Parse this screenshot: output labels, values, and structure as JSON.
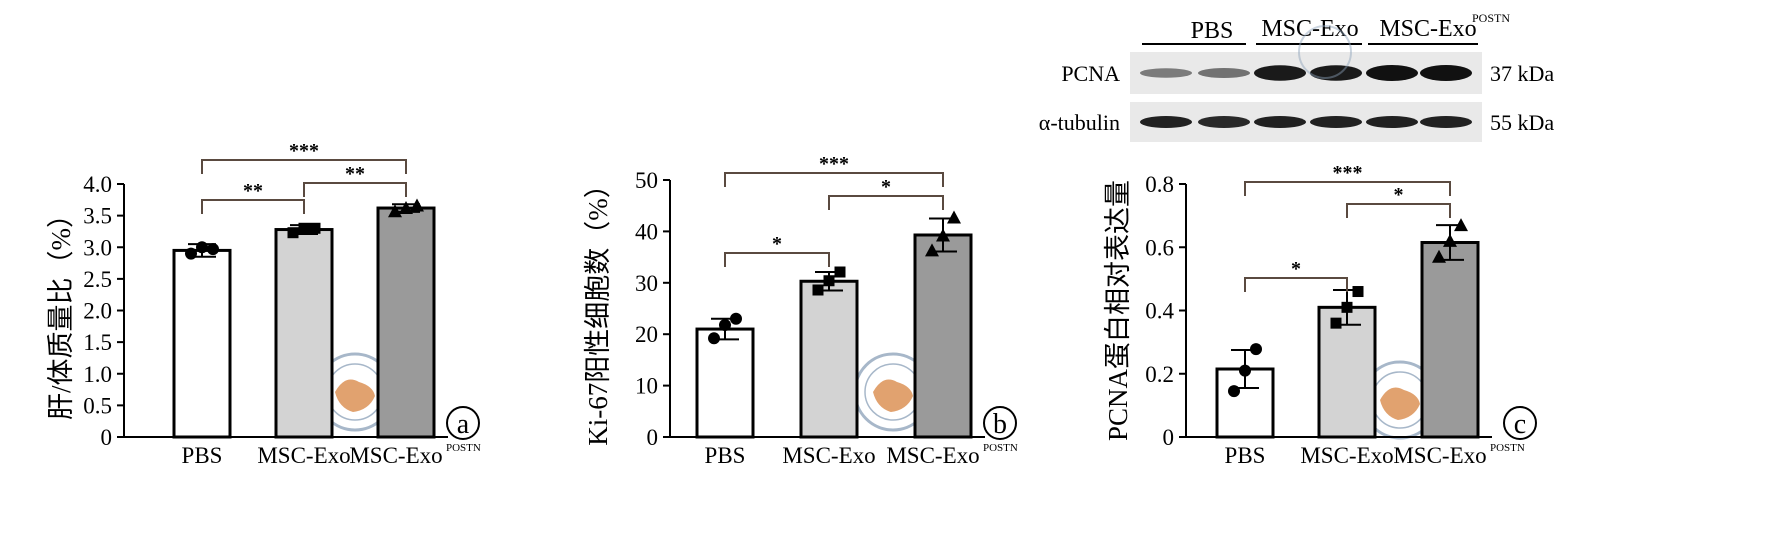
{
  "colors": {
    "pbs": "#ffffff",
    "msc_exo": "#d3d3d3",
    "msc_exo_postn": "#9a9a9a",
    "axis": "#000000",
    "bracket": "#5a4a40",
    "blot_bg": "#e9e9e9",
    "band": "#111111"
  },
  "western_blot": {
    "groups": [
      {
        "label": "PBS",
        "sup": ""
      },
      {
        "label": "MSC-Exo",
        "sup": ""
      },
      {
        "label": "MSC-Exo",
        "sup": "POSTN"
      }
    ],
    "rows": [
      {
        "protein": "PCNA",
        "size": "37 kDa",
        "intensity": [
          0.35,
          0.4,
          0.95,
          0.95,
          1.0,
          1.0
        ]
      },
      {
        "protein": "α-tubulin",
        "size": "55 kDa",
        "intensity": [
          0.9,
          0.85,
          0.9,
          0.9,
          0.9,
          0.9
        ]
      }
    ]
  },
  "chart_data": [
    {
      "type": "bar",
      "panel": "a",
      "categories": [
        {
          "label": "PBS",
          "sup": ""
        },
        {
          "label": "MSC-Exo",
          "sup": ""
        },
        {
          "label": "MSC-Exo",
          "sup": "POSTN"
        }
      ],
      "values": [
        2.95,
        3.28,
        3.62
      ],
      "errors": [
        0.1,
        0.07,
        0.06
      ],
      "points": [
        [
          2.9,
          3.0,
          2.97
        ],
        [
          3.23,
          3.3,
          3.3
        ],
        [
          3.57,
          3.62,
          3.66
        ]
      ],
      "markers": [
        "circle",
        "square",
        "triangle"
      ],
      "ylabel": "肝/体质量比（%）",
      "ylim": [
        0,
        4.0
      ],
      "yticks": [
        0,
        0.5,
        1.0,
        1.5,
        2.0,
        2.5,
        3.0,
        3.5,
        4.0
      ],
      "ytick_labels": [
        "0",
        "0.5",
        "1.0",
        "1.5",
        "2.0",
        "2.5",
        "3.0",
        "3.5",
        "4.0"
      ],
      "significance": [
        {
          "from": 0,
          "to": 1,
          "label": "**",
          "level": 1
        },
        {
          "from": 1,
          "to": 2,
          "label": "**",
          "level": 1
        },
        {
          "from": 0,
          "to": 2,
          "label": "***",
          "level": 2
        }
      ]
    },
    {
      "type": "bar",
      "panel": "b",
      "categories": [
        {
          "label": "PBS",
          "sup": ""
        },
        {
          "label": "MSC-Exo",
          "sup": ""
        },
        {
          "label": "MSC-Exo",
          "sup": "POSTN"
        }
      ],
      "values": [
        21,
        30.3,
        39.3
      ],
      "errors": [
        2.0,
        1.8,
        3.2
      ],
      "points": [
        [
          19.2,
          21.8,
          23.0
        ],
        [
          28.6,
          30.4,
          32.1
        ],
        [
          36.3,
          39.2,
          42.7
        ]
      ],
      "markers": [
        "circle",
        "square",
        "triangle"
      ],
      "ylabel": "Ki-67阳性细胞数（%）",
      "ylim": [
        0,
        50
      ],
      "yticks": [
        0,
        10,
        20,
        30,
        40,
        50
      ],
      "ytick_labels": [
        "0",
        "10",
        "20",
        "30",
        "40",
        "50"
      ],
      "significance": [
        {
          "from": 0,
          "to": 1,
          "label": "*",
          "level": 1
        },
        {
          "from": 1,
          "to": 2,
          "label": "*",
          "level": 1
        },
        {
          "from": 0,
          "to": 2,
          "label": "***",
          "level": 2
        }
      ]
    },
    {
      "type": "bar",
      "panel": "c",
      "categories": [
        {
          "label": "PBS",
          "sup": ""
        },
        {
          "label": "MSC-Exo",
          "sup": ""
        },
        {
          "label": "MSC-Exo",
          "sup": "POSTN"
        }
      ],
      "values": [
        0.215,
        0.41,
        0.615
      ],
      "errors": [
        0.06,
        0.055,
        0.055
      ],
      "points": [
        [
          0.145,
          0.21,
          0.278
        ],
        [
          0.36,
          0.41,
          0.46
        ],
        [
          0.57,
          0.62,
          0.67
        ]
      ],
      "markers": [
        "circle",
        "square",
        "triangle"
      ],
      "ylabel": "PCNA蛋白相对表达量",
      "ylim": [
        0,
        0.8
      ],
      "yticks": [
        0,
        0.2,
        0.4,
        0.6,
        0.8
      ],
      "ytick_labels": [
        "0",
        "0.2",
        "0.4",
        "0.6",
        "0.8"
      ],
      "significance": [
        {
          "from": 0,
          "to": 1,
          "label": "*",
          "level": 1
        },
        {
          "from": 1,
          "to": 2,
          "label": "*",
          "level": 1
        },
        {
          "from": 0,
          "to": 2,
          "label": "***",
          "level": 2
        }
      ]
    }
  ]
}
